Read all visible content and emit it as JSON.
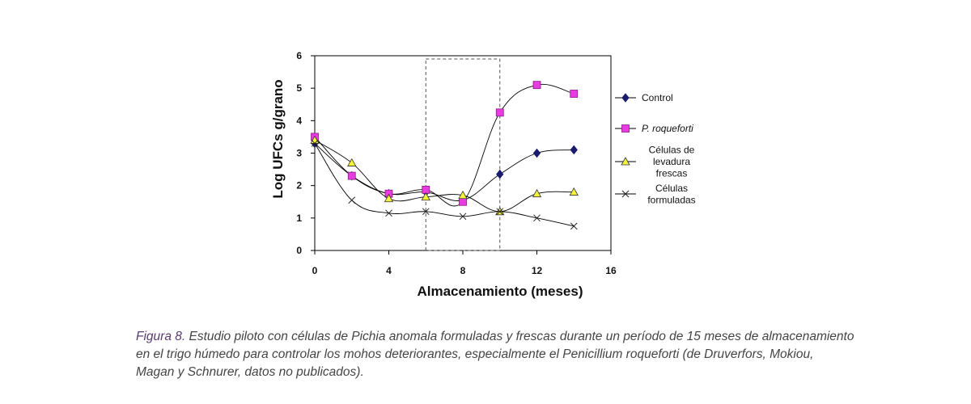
{
  "chart_data": {
    "type": "line",
    "xlabel": "Almacenamiento (meses)",
    "ylabel": "Log UFCs g/grano",
    "xlim": [
      0,
      16
    ],
    "ylim": [
      0,
      6
    ],
    "xticks": [
      "0",
      "4",
      "8",
      "12",
      "16"
    ],
    "yticks": [
      "0",
      "1",
      "2",
      "3",
      "4",
      "5",
      "6"
    ],
    "highlight_region": {
      "x": [
        6,
        10
      ],
      "y": [
        0,
        5.9
      ],
      "style": "dashed"
    },
    "series": [
      {
        "name": "Control",
        "marker": "diamond",
        "color": "#1a1a6e",
        "x": [
          0,
          2,
          4,
          6,
          8,
          10,
          12,
          14
        ],
        "y": [
          3.3,
          2.3,
          1.75,
          1.8,
          1.55,
          2.35,
          3.0,
          3.1
        ]
      },
      {
        "name": "P. roqueforti",
        "italic": true,
        "marker": "square",
        "color": "#e83ce0",
        "x": [
          0,
          2,
          4,
          6,
          8,
          10,
          12,
          14
        ],
        "y": [
          3.5,
          2.3,
          1.75,
          1.87,
          1.5,
          4.25,
          5.1,
          4.83
        ]
      },
      {
        "name": "Células de levadura frescas",
        "legend_lines": [
          "Células de",
          "levadura",
          "frescas"
        ],
        "marker": "triangle",
        "color": "#f5f23a",
        "x": [
          0,
          2,
          4,
          6,
          8,
          10,
          12,
          14
        ],
        "y": [
          3.4,
          2.7,
          1.6,
          1.65,
          1.7,
          1.2,
          1.75,
          1.8
        ]
      },
      {
        "name": "Células formuladas",
        "legend_lines": [
          "Células",
          "formuladas"
        ],
        "marker": "x",
        "color": "#222222",
        "x": [
          0,
          2,
          4,
          6,
          8,
          10,
          12,
          14
        ],
        "y": [
          3.3,
          1.55,
          1.15,
          1.2,
          1.05,
          1.2,
          1.0,
          0.75
        ]
      }
    ]
  },
  "caption": {
    "label": "Figura 8.",
    "lines": [
      " Estudio piloto con células de Pichia anomala formuladas y frescas durante un período de 15 meses de almacenamiento",
      "en el trigo húmedo para controlar los mohos deteriorantes, especialmente el Penicillium roqueforti (de Druverfors, Mokiou,",
      "Magan y Schnurer, datos no publicados)."
    ]
  }
}
